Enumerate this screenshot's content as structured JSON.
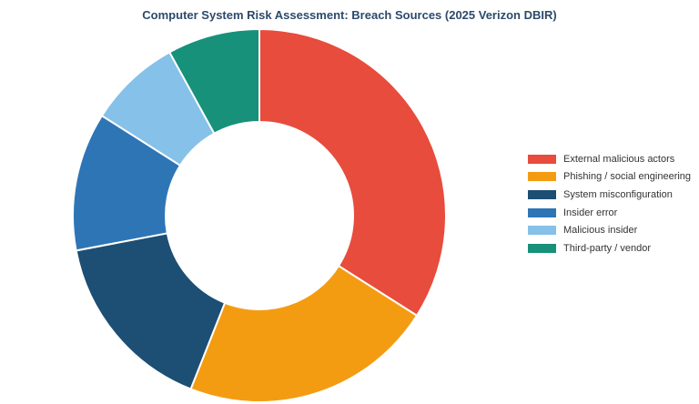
{
  "chart_data": {
    "type": "pie",
    "title": "Computer System Risk Assessment: Breach Sources (2025 Verizon DBIR)",
    "series": [
      {
        "name": "External malicious actors",
        "value": 34,
        "color": "#e74c3c"
      },
      {
        "name": "Phishing / social engineering",
        "value": 22,
        "color": "#f39c12"
      },
      {
        "name": "System misconfiguration",
        "value": 16,
        "color": "#1d4e73"
      },
      {
        "name": "Insider error",
        "value": 12,
        "color": "#2e75b6"
      },
      {
        "name": "Malicious insider",
        "value": 8,
        "color": "#85c1e9"
      },
      {
        "name": "Third-party / vendor",
        "value": 8,
        "color": "#17917a"
      }
    ],
    "legend_position": "right",
    "donut": true
  }
}
